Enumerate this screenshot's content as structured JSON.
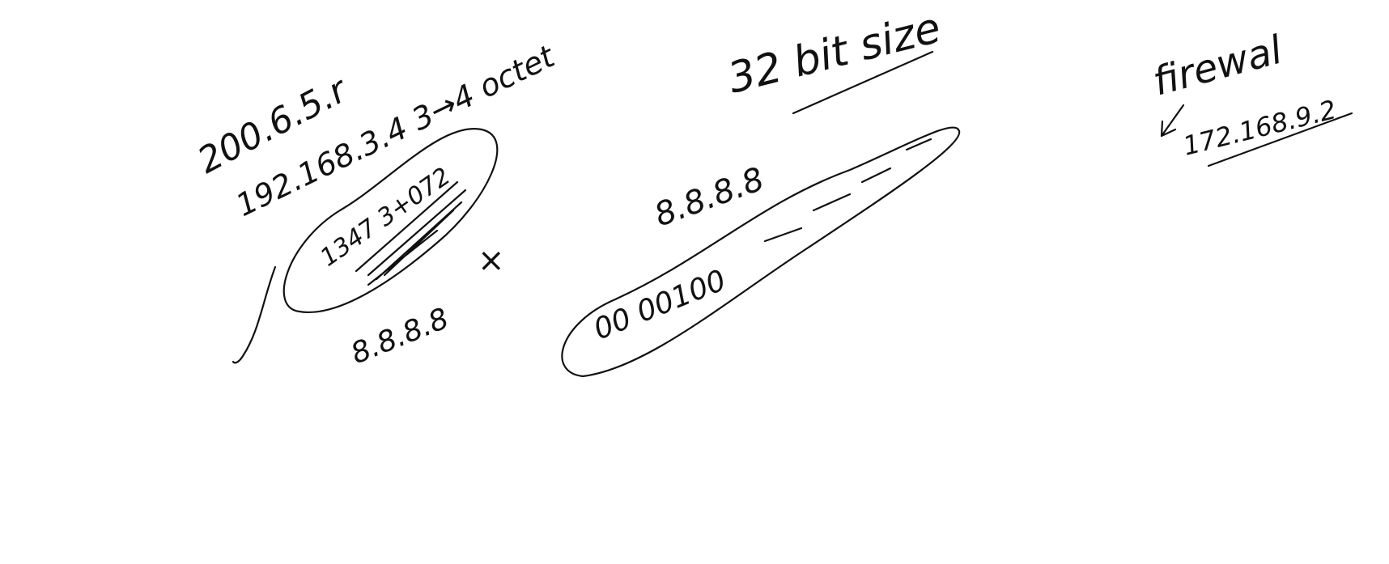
{
  "notes": {
    "ip_200": "200.6.5.r",
    "ip_192": "192.168.3.4 3→4 octet",
    "circled_code": "1347 3+072",
    "ip_8888_left": "8.8.8.8",
    "cross_mark": "×",
    "ip_8888_center": "8.8.8.8",
    "binary_prefix": "00 00100",
    "title_32bit": "32 bit size",
    "firewall_label": "firewal",
    "ip_172": "172.168.9.2"
  },
  "ink_color": "#111111"
}
